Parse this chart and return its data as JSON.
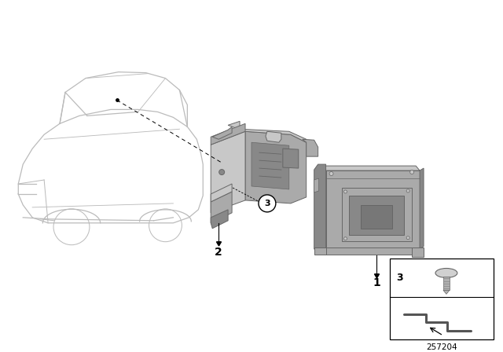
{
  "bg_color": "#ffffff",
  "car_line_color": "#bbbbbb",
  "part_fill_light": "#c8c8c8",
  "part_fill_mid": "#aaaaaa",
  "part_fill_dark": "#888888",
  "part_edge_color": "#666666",
  "label_color": "#000000",
  "diagram_number": "257204",
  "fig_width": 6.4,
  "fig_height": 4.48,
  "dpi": 100,
  "car_lw": 0.9,
  "part_lw": 0.7
}
